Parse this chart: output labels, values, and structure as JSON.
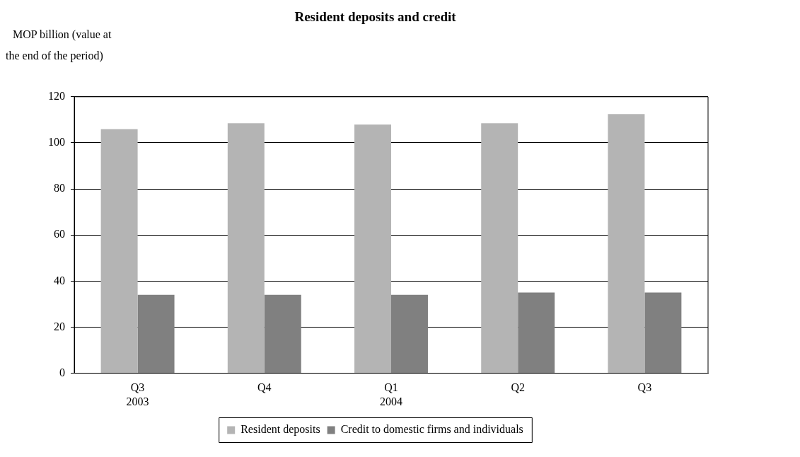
{
  "chart_data": {
    "type": "bar",
    "title": "Resident deposits and credit",
    "ylabel": "MOP billion (value at\nthe end of the period)",
    "categories": [
      "Q3\n2003",
      "Q4",
      "Q1\n2004",
      "Q2",
      "Q3"
    ],
    "series": [
      {
        "name": "Resident deposits",
        "color": "#b4b4b4",
        "values": [
          106,
          108.5,
          108,
          108.5,
          112.5
        ]
      },
      {
        "name": "Credit to domestic firms and individuals",
        "color": "#808080",
        "values": [
          34,
          34,
          34,
          35,
          35
        ]
      }
    ],
    "ylim": [
      0,
      120
    ],
    "yticks": [
      0,
      20,
      40,
      60,
      80,
      100,
      120
    ],
    "grid": "y",
    "legend": "bottom"
  }
}
